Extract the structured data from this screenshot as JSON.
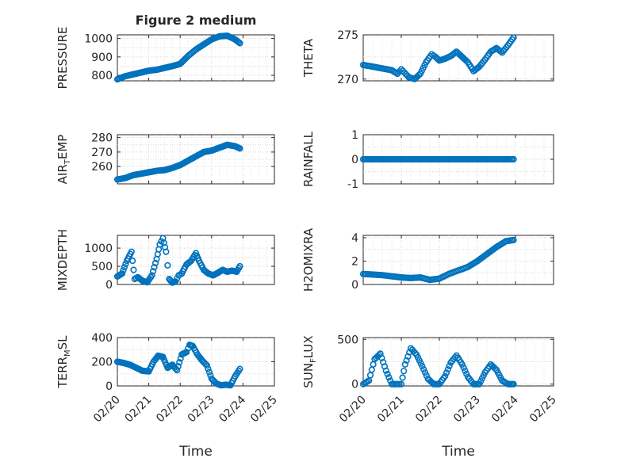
{
  "figure_title": "Figure 2 medium",
  "xaxis_title": "Time",
  "x_tick_labels": [
    "02/20",
    "02/21",
    "02/22",
    "02/23",
    "02/24",
    "02/25"
  ],
  "marker_color": "#0072BD",
  "chart_data": [
    {
      "type": "scatter",
      "title": "Figure 2 medium",
      "ylabel": "PRESSURE",
      "xlim": [
        0,
        5
      ],
      "ylim": [
        770,
        1020
      ],
      "yticks": [
        800,
        900,
        1000
      ],
      "grid": true,
      "x": [
        0,
        0.25,
        0.5,
        0.75,
        1,
        1.25,
        1.5,
        1.75,
        2,
        2.25,
        2.5,
        2.75,
        3,
        3.25,
        3.5,
        3.75,
        3.9
      ],
      "values": [
        778,
        795,
        805,
        815,
        825,
        830,
        840,
        850,
        862,
        905,
        940,
        968,
        995,
        1012,
        1015,
        995,
        975
      ]
    },
    {
      "type": "scatter",
      "ylabel": "THETA",
      "xlim": [
        0,
        5
      ],
      "ylim": [
        269.8,
        275
      ],
      "yticks": [
        270,
        275
      ],
      "grid": true,
      "x": [
        0,
        0.25,
        0.5,
        0.75,
        0.9,
        1,
        1.2,
        1.35,
        1.5,
        1.65,
        1.8,
        1.9,
        2,
        2.15,
        2.3,
        2.45,
        2.6,
        2.75,
        2.9,
        3.05,
        3.2,
        3.35,
        3.5,
        3.65,
        3.8,
        3.95
      ],
      "values": [
        271.6,
        271.4,
        271.2,
        271.0,
        270.6,
        271.1,
        270.2,
        270.0,
        270.6,
        271.9,
        272.8,
        272.5,
        272.1,
        272.3,
        272.6,
        273.1,
        272.5,
        271.9,
        270.9,
        271.4,
        272.2,
        273.1,
        273.5,
        273.0,
        273.8,
        274.7
      ]
    },
    {
      "type": "scatter",
      "ylabel": "AIR_TEMP",
      "xlim": [
        0,
        5
      ],
      "ylim": [
        248,
        282
      ],
      "yticks": [
        260,
        270,
        280
      ],
      "grid": true,
      "x": [
        0,
        0.25,
        0.5,
        0.75,
        1,
        1.25,
        1.5,
        1.75,
        2,
        2.25,
        2.5,
        2.75,
        3,
        3.25,
        3.5,
        3.75,
        3.9
      ],
      "values": [
        251,
        252,
        254,
        255,
        256,
        257,
        257.5,
        259,
        261,
        264,
        267,
        270,
        271,
        273,
        275,
        274,
        272.5
      ]
    },
    {
      "type": "scatter",
      "ylabel": "RAINFALL",
      "xlim": [
        0,
        5
      ],
      "ylim": [
        -1,
        1
      ],
      "yticks": [
        -1,
        0,
        1
      ],
      "grid": true,
      "x": [
        0,
        0.25,
        0.5,
        0.75,
        1,
        1.25,
        1.5,
        1.75,
        2,
        2.25,
        2.5,
        2.75,
        3,
        3.25,
        3.5,
        3.75,
        3.95
      ],
      "values": [
        0,
        0,
        0,
        0,
        0,
        0,
        0,
        0,
        0,
        0,
        0,
        0,
        0,
        0,
        0,
        0,
        0
      ]
    },
    {
      "type": "scatter",
      "ylabel": "MIXDEPTH",
      "xlim": [
        0,
        5
      ],
      "ylim": [
        0,
        1350
      ],
      "yticks": [
        0,
        500,
        1000
      ],
      "grid": true,
      "x": [
        0,
        0.15,
        0.3,
        0.45,
        0.55,
        0.65,
        0.8,
        0.95,
        1.1,
        1.25,
        1.35,
        1.45,
        1.55,
        1.65,
        1.75,
        1.85,
        1.95,
        2.05,
        2.2,
        2.35,
        2.5,
        2.6,
        2.75,
        2.9,
        3.05,
        3.2,
        3.35,
        3.5,
        3.65,
        3.8,
        3.9
      ],
      "values": [
        220,
        300,
        650,
        900,
        150,
        200,
        100,
        60,
        250,
        700,
        1100,
        1270,
        900,
        150,
        50,
        80,
        250,
        300,
        550,
        650,
        860,
        650,
        400,
        300,
        250,
        320,
        400,
        350,
        380,
        350,
        500
      ]
    },
    {
      "type": "scatter",
      "ylabel": "H2OMIXRA",
      "xlim": [
        0,
        5
      ],
      "ylim": [
        0,
        4.2
      ],
      "yticks": [
        0,
        2,
        4
      ],
      "grid": true,
      "x": [
        0,
        0.25,
        0.5,
        0.75,
        1,
        1.25,
        1.5,
        1.75,
        2,
        2.25,
        2.5,
        2.75,
        3,
        3.25,
        3.5,
        3.75,
        3.95
      ],
      "values": [
        0.9,
        0.85,
        0.8,
        0.7,
        0.6,
        0.55,
        0.6,
        0.4,
        0.5,
        0.9,
        1.2,
        1.5,
        2.0,
        2.6,
        3.2,
        3.7,
        3.8
      ]
    },
    {
      "type": "scatter",
      "ylabel": "TERR_MSL",
      "xlim": [
        0,
        5
      ],
      "ylim": [
        0,
        400
      ],
      "yticks": [
        0,
        200,
        400
      ],
      "grid": true,
      "x": [
        0,
        0.2,
        0.4,
        0.6,
        0.8,
        1,
        1.15,
        1.3,
        1.45,
        1.6,
        1.75,
        1.9,
        2.05,
        2.2,
        2.3,
        2.4,
        2.55,
        2.7,
        2.85,
        3,
        3.15,
        3.3,
        3.45,
        3.6,
        3.75,
        3.9
      ],
      "values": [
        200,
        190,
        175,
        150,
        125,
        120,
        200,
        250,
        240,
        150,
        175,
        130,
        260,
        280,
        340,
        330,
        260,
        210,
        170,
        60,
        20,
        5,
        10,
        5,
        80,
        140
      ]
    },
    {
      "type": "scatter",
      "ylabel": "SUN_FLUX",
      "xlim": [
        0,
        5
      ],
      "ylim": [
        -20,
        520
      ],
      "yticks": [
        0,
        500
      ],
      "grid": true,
      "x": [
        0,
        0.15,
        0.3,
        0.45,
        0.6,
        0.75,
        0.9,
        1.0,
        1.1,
        1.25,
        1.4,
        1.55,
        1.7,
        1.85,
        2.0,
        2.15,
        2.3,
        2.45,
        2.6,
        2.75,
        2.9,
        3.05,
        3.2,
        3.35,
        3.5,
        3.65,
        3.8,
        3.95
      ],
      "values": [
        0,
        40,
        280,
        340,
        150,
        0,
        0,
        0,
        220,
        400,
        330,
        200,
        60,
        0,
        0,
        90,
        240,
        320,
        220,
        80,
        0,
        0,
        130,
        220,
        160,
        40,
        0,
        0
      ]
    }
  ]
}
